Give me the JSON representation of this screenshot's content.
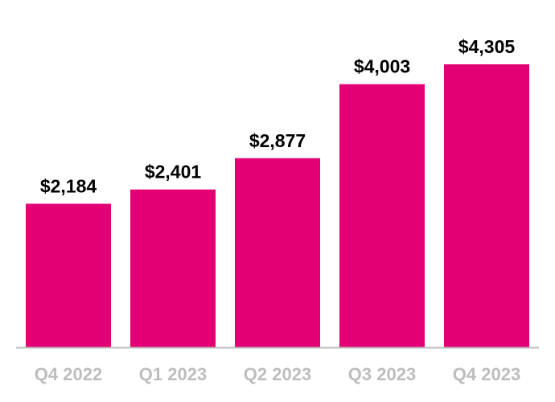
{
  "chart_data": {
    "type": "bar",
    "categories": [
      "Q4 2022",
      "Q1 2023",
      "Q2 2023",
      "Q3 2023",
      "Q4 2023"
    ],
    "values": [
      2184,
      2401,
      2877,
      4003,
      4305
    ],
    "data_labels": [
      "$2,184",
      "$2,401",
      "$2,877",
      "$4,003",
      "$4,305"
    ],
    "title": "",
    "xlabel": "",
    "ylabel": "",
    "ylim": [
      0,
      4305
    ],
    "grid": false,
    "legend": "none",
    "colors": {
      "bar": "#E20074",
      "axis": "#bdbdbd",
      "category_label": "#bdbdbd",
      "value_label": "#000000"
    }
  }
}
